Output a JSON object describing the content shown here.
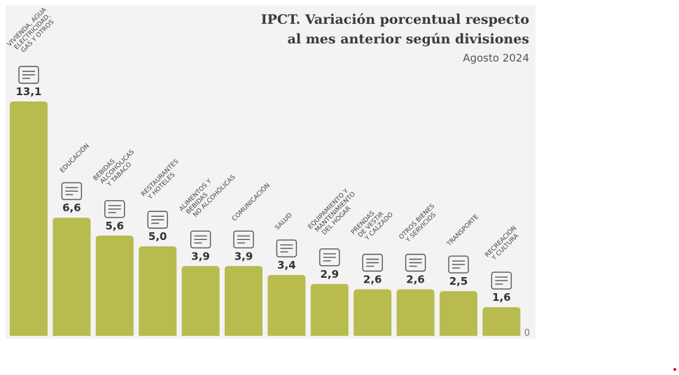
{
  "chart_data": {
    "type": "bar",
    "title": "IPCT. Variación porcentual respecto al mes anterior según divisiones",
    "title_lines": [
      "IPCT. Variación porcentual respecto",
      "al mes anterior según divisiones"
    ],
    "subtitle": "Agosto 2024",
    "categories": [
      [
        "VIVIENDA, AGUA",
        "ELECTRICIDAD,",
        "GAS Y OTROS"
      ],
      [
        "EDUCACIÓN"
      ],
      [
        "BEBIDAS",
        "ALCOHÓLICAS",
        "Y TABACO"
      ],
      [
        "RESTAURANTES",
        "Y HOTELES"
      ],
      [
        "ALIMENTOS Y",
        "BEBIDAS",
        "NO ALCOHÓLICAS"
      ],
      [
        "COMUNICACIÓN"
      ],
      [
        "SALUD"
      ],
      [
        "EQUIPAMIENTO Y",
        "MANTENIMIENTO",
        "DEL HOGAR"
      ],
      [
        "PRENDAS",
        "DE VESTIR",
        "Y CALZADO"
      ],
      [
        "OTROS BIENES",
        "Y SERVICIOS"
      ],
      [
        "TRANSPORTE"
      ],
      [
        "RECREACIÓN",
        "Y CULTURA"
      ]
    ],
    "icons": [
      "house-bill-icon",
      "diploma-icon",
      "wine-bottle-icon",
      "dining-plate-icon",
      "food-bowl-icon",
      "smartphone-icon",
      "hospital-icon",
      "microwave-icon",
      "shirt-icon",
      "scissors-ribbon-icon",
      "bus-icon",
      "camera-icon"
    ],
    "values": [
      13.1,
      6.6,
      5.6,
      5.0,
      3.9,
      3.9,
      3.4,
      2.9,
      2.6,
      2.6,
      2.5,
      1.6
    ],
    "value_labels": [
      "13,1",
      "6,6",
      "5,6",
      "5,0",
      "3,9",
      "3,9",
      "3,4",
      "2,9",
      "2,6",
      "2,6",
      "2,5",
      "1,6"
    ],
    "baseline_label": "0",
    "ylim": [
      0,
      13.1
    ],
    "grid": false,
    "bar_color": "#b8bb4e"
  }
}
